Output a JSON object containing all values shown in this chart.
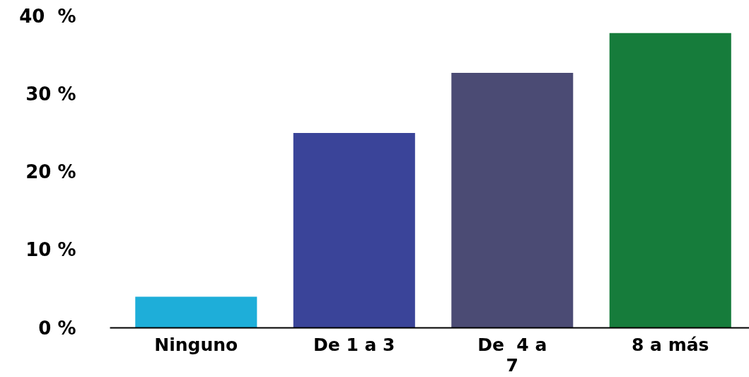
{
  "chart_data": {
    "type": "bar",
    "categories": [
      "Ninguno",
      "De 1 a 3",
      "De  4 a 7",
      "8 a más"
    ],
    "values": [
      4,
      25,
      32.7,
      37.8
    ],
    "colors": [
      "#1eaed9",
      "#3a4499",
      "#4b4b74",
      "#167c3b"
    ],
    "ylim": [
      0,
      40
    ],
    "yticks": [
      {
        "value": 0,
        "label": "0 %"
      },
      {
        "value": 10,
        "label": "10 %"
      },
      {
        "value": 20,
        "label": "20 %"
      },
      {
        "value": 30,
        "label": "30 %"
      },
      {
        "value": 40,
        "label": "40  %"
      }
    ],
    "grid": false
  }
}
